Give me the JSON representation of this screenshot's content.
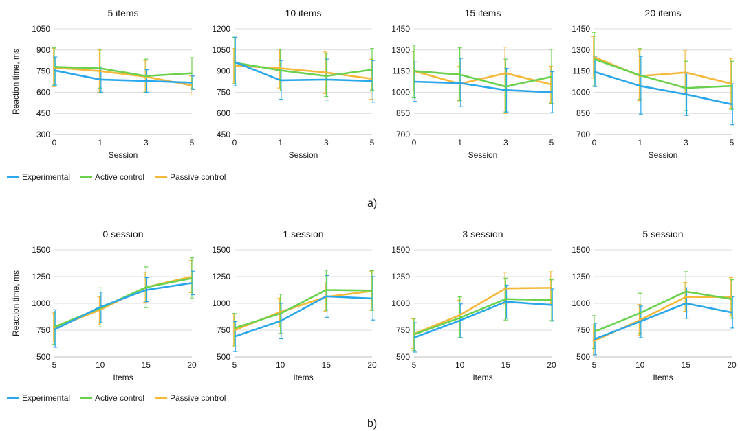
{
  "colors": {
    "experimental": "#2aa6ea",
    "active": "#6ad14f",
    "passive": "#f5b83a",
    "grid": "#dcdcdc"
  },
  "legend": {
    "experimental": "Experimental",
    "active": "Active control",
    "passive": "Passive control"
  },
  "panel_labels": {
    "a": "a)",
    "b": "b)"
  },
  "chart_data": [
    {
      "type": "line",
      "row": "a",
      "title": "5 items",
      "xlabel": "Session",
      "ylabel": "Reaction time, ms",
      "x": [
        "0",
        "1",
        "3",
        "5"
      ],
      "ylim": [
        300,
        1050
      ],
      "yticks": [
        300,
        450,
        600,
        750,
        900,
        1050
      ],
      "series": [
        {
          "name": "Experimental",
          "key": "experimental",
          "values": [
            755,
            690,
            680,
            668
          ],
          "err_low": [
            650,
            600,
            600,
            620
          ],
          "err_high": [
            850,
            780,
            760,
            715
          ]
        },
        {
          "name": "Active control",
          "key": "active",
          "values": [
            780,
            770,
            715,
            735
          ],
          "err_low": [
            650,
            630,
            600,
            625
          ],
          "err_high": [
            915,
            905,
            835,
            845
          ]
        },
        {
          "name": "Passive control",
          "key": "passive",
          "values": [
            775,
            750,
            710,
            648
          ],
          "err_low": [
            640,
            600,
            600,
            580
          ],
          "err_high": [
            910,
            900,
            825,
            715
          ]
        }
      ]
    },
    {
      "type": "line",
      "row": "a",
      "title": "10 items",
      "xlabel": "Session",
      "ylabel": "",
      "x": [
        "0",
        "1",
        "3",
        "5"
      ],
      "ylim": [
        450,
        1200
      ],
      "yticks": [
        450,
        600,
        750,
        900,
        1050,
        1200
      ],
      "series": [
        {
          "name": "Experimental",
          "key": "experimental",
          "values": [
            965,
            835,
            840,
            830
          ],
          "err_low": [
            795,
            700,
            695,
            680
          ],
          "err_high": [
            1140,
            975,
            985,
            975
          ]
        },
        {
          "name": "Active control",
          "key": "active",
          "values": [
            960,
            905,
            865,
            910
          ],
          "err_low": [
            810,
            760,
            720,
            765
          ],
          "err_high": [
            1140,
            1055,
            1025,
            1060
          ]
        },
        {
          "name": "Passive control",
          "key": "passive",
          "values": [
            940,
            920,
            890,
            845
          ],
          "err_low": [
            810,
            780,
            740,
            700
          ],
          "err_high": [
            1060,
            1055,
            1035,
            985
          ]
        }
      ]
    },
    {
      "type": "line",
      "row": "a",
      "title": "15 items",
      "xlabel": "Session",
      "ylabel": "",
      "x": [
        "0",
        "1",
        "3",
        "5"
      ],
      "ylim": [
        700,
        1450
      ],
      "yticks": [
        700,
        850,
        1000,
        1150,
        1300,
        1450
      ],
      "series": [
        {
          "name": "Experimental",
          "key": "experimental",
          "values": [
            1075,
            1065,
            1015,
            1000
          ],
          "err_low": [
            935,
            900,
            860,
            855
          ],
          "err_high": [
            1215,
            1240,
            1170,
            1145
          ]
        },
        {
          "name": "Active control",
          "key": "active",
          "values": [
            1150,
            1125,
            1040,
            1110
          ],
          "err_low": [
            960,
            940,
            860,
            920
          ],
          "err_high": [
            1335,
            1315,
            1235,
            1305
          ]
        },
        {
          "name": "Passive control",
          "key": "passive",
          "values": [
            1150,
            1060,
            1135,
            1055
          ],
          "err_low": [
            1010,
            940,
            850,
            925
          ],
          "err_high": [
            1290,
            1185,
            1320,
            1185
          ]
        }
      ]
    },
    {
      "type": "line",
      "row": "a",
      "title": "20 items",
      "xlabel": "Session",
      "ylabel": "",
      "x": [
        "0",
        "1",
        "3",
        "5"
      ],
      "ylim": [
        700,
        1450
      ],
      "yticks": [
        700,
        850,
        1000,
        1150,
        1300,
        1450
      ],
      "series": [
        {
          "name": "Experimental",
          "key": "experimental",
          "values": [
            1145,
            1045,
            985,
            915
          ],
          "err_low": [
            1040,
            845,
            835,
            770
          ],
          "err_high": [
            1255,
            1255,
            1135,
            1060
          ]
        },
        {
          "name": "Active control",
          "key": "active",
          "values": [
            1235,
            1120,
            1030,
            1045
          ],
          "err_low": [
            1045,
            950,
            870,
            880
          ],
          "err_high": [
            1425,
            1310,
            1220,
            1220
          ]
        },
        {
          "name": "Passive control",
          "key": "passive",
          "values": [
            1250,
            1115,
            1140,
            1060
          ],
          "err_low": [
            1100,
            940,
            990,
            880
          ],
          "err_high": [
            1395,
            1300,
            1295,
            1240
          ]
        }
      ]
    },
    {
      "type": "line",
      "row": "b",
      "title": "0 session",
      "xlabel": "Items",
      "ylabel": "Reaction time, ms",
      "x": [
        "5",
        "10",
        "15",
        "20"
      ],
      "ylim": [
        500,
        1500
      ],
      "yticks": [
        500,
        750,
        1000,
        1250,
        1500
      ],
      "series": [
        {
          "name": "Experimental",
          "key": "experimental",
          "values": [
            755,
            965,
            1125,
            1190
          ],
          "err_low": [
            590,
            820,
            1015,
            1080
          ],
          "err_high": [
            940,
            1105,
            1240,
            1300
          ]
        },
        {
          "name": "Active control",
          "key": "active",
          "values": [
            780,
            955,
            1150,
            1235
          ],
          "err_low": [
            620,
            780,
            960,
            1045
          ],
          "err_high": [
            920,
            1145,
            1340,
            1425
          ]
        },
        {
          "name": "Passive control",
          "key": "passive",
          "values": [
            770,
            940,
            1150,
            1250
          ],
          "err_low": [
            640,
            800,
            1010,
            1100
          ],
          "err_high": [
            910,
            1060,
            1290,
            1400
          ]
        }
      ]
    },
    {
      "type": "line",
      "row": "b",
      "title": "1 session",
      "xlabel": "Items",
      "ylabel": "",
      "x": [
        "5",
        "10",
        "15",
        "20"
      ],
      "ylim": [
        500,
        1500
      ],
      "yticks": [
        500,
        750,
        1000,
        1250,
        1500
      ],
      "series": [
        {
          "name": "Experimental",
          "key": "experimental",
          "values": [
            690,
            835,
            1065,
            1045
          ],
          "err_low": [
            550,
            670,
            870,
            845
          ],
          "err_high": [
            830,
            1000,
            1260,
            1250
          ]
        },
        {
          "name": "Active control",
          "key": "active",
          "values": [
            770,
            905,
            1125,
            1120
          ],
          "err_low": [
            610,
            720,
            935,
            935
          ],
          "err_high": [
            905,
            1085,
            1310,
            1305
          ]
        },
        {
          "name": "Passive control",
          "key": "passive",
          "values": [
            750,
            920,
            1060,
            1115
          ],
          "err_low": [
            595,
            780,
            925,
            935
          ],
          "err_high": [
            900,
            1050,
            1190,
            1300
          ]
        }
      ]
    },
    {
      "type": "line",
      "row": "b",
      "title": "3 session",
      "xlabel": "Items",
      "ylabel": "",
      "x": [
        "5",
        "10",
        "15",
        "20"
      ],
      "ylim": [
        500,
        1500
      ],
      "yticks": [
        500,
        750,
        1000,
        1250,
        1500
      ],
      "series": [
        {
          "name": "Experimental",
          "key": "experimental",
          "values": [
            680,
            840,
            1015,
            985
          ],
          "err_low": [
            545,
            680,
            860,
            835
          ],
          "err_high": [
            820,
            995,
            1170,
            1135
          ]
        },
        {
          "name": "Active control",
          "key": "active",
          "values": [
            710,
            865,
            1040,
            1030
          ],
          "err_low": [
            560,
            680,
            845,
            840
          ],
          "err_high": [
            860,
            1060,
            1235,
            1220
          ]
        },
        {
          "name": "Passive control",
          "key": "passive",
          "values": [
            715,
            890,
            1140,
            1145
          ],
          "err_low": [
            580,
            740,
            995,
            995
          ],
          "err_high": [
            855,
            1030,
            1290,
            1295
          ]
        }
      ]
    },
    {
      "type": "line",
      "row": "b",
      "title": "5 session",
      "xlabel": "Items",
      "ylabel": "",
      "x": [
        "5",
        "10",
        "15",
        "20"
      ],
      "ylim": [
        500,
        1500
      ],
      "yticks": [
        500,
        750,
        1000,
        1250,
        1500
      ],
      "series": [
        {
          "name": "Experimental",
          "key": "experimental",
          "values": [
            665,
            830,
            1000,
            915
          ],
          "err_low": [
            520,
            680,
            860,
            770
          ],
          "err_high": [
            815,
            975,
            1145,
            1060
          ]
        },
        {
          "name": "Active control",
          "key": "active",
          "values": [
            735,
            910,
            1110,
            1040
          ],
          "err_low": [
            580,
            720,
            920,
            860
          ],
          "err_high": [
            885,
            1095,
            1295,
            1220
          ]
        },
        {
          "name": "Passive control",
          "key": "passive",
          "values": [
            650,
            845,
            1060,
            1060
          ],
          "err_low": [
            510,
            700,
            925,
            880
          ],
          "err_high": [
            800,
            990,
            1195,
            1240
          ]
        }
      ]
    }
  ]
}
